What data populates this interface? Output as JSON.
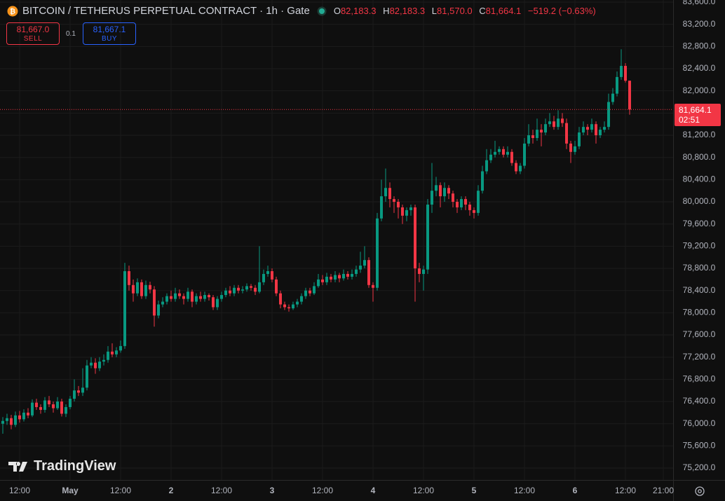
{
  "header": {
    "symbol": "BITCOIN / TETHERUS PERPETUAL CONTRACT · 1h · Gate",
    "o_label": "O",
    "open": "82,183.3",
    "h_label": "H",
    "high": "82,183.3",
    "l_label": "L",
    "low": "81,570.0",
    "c_label": "C",
    "close": "81,664.1",
    "change": "−519.2 (−0.63%)"
  },
  "trade": {
    "sell_price": "81,667.0",
    "sell": "SELL",
    "quantity": "0.1",
    "buy_price": "81,667.1",
    "buy": "BUY"
  },
  "watermark": "TradingView",
  "chart_data": {
    "type": "candlestick",
    "up_color": "#089981",
    "down_color": "#f23645",
    "grid": true,
    "open": [
      76000,
      76050,
      76100,
      75980,
      76150,
      76080,
      76200,
      76150,
      76380,
      76300,
      76250,
      76420,
      76350,
      76280,
      76400,
      76180,
      76300,
      76450,
      76600,
      76560,
      76650,
      77050,
      77100,
      77000,
      77120,
      77150,
      77300,
      77250,
      77320,
      77400,
      78750,
      78500,
      78350,
      78550,
      78300,
      78500,
      78420,
      77950,
      78150,
      78200,
      78300,
      78250,
      78350,
      78300,
      78250,
      78380,
      78200,
      78300,
      78250,
      78320,
      78280,
      78100,
      78250,
      78320,
      78400,
      78350,
      78450,
      78400,
      78420,
      78480,
      78450,
      78380,
      78550,
      78700,
      78750,
      78600,
      78350,
      78150,
      78100,
      78080,
      78150,
      78200,
      78300,
      78400,
      78350,
      78480,
      78600,
      78550,
      78650,
      78600,
      78680,
      78620,
      78700,
      78650,
      78700,
      78780,
      78850,
      78950,
      78500,
      78450,
      79700,
      80100,
      80250,
      80050,
      80000,
      79900,
      79750,
      79850,
      79900,
      78800,
      78700,
      78780,
      79950,
      80200,
      80300,
      80100,
      80250,
      80150,
      80000,
      79900,
      80050,
      79950,
      79850,
      79800,
      80200,
      80550,
      80750,
      80850,
      80900,
      80950,
      80850,
      80900,
      80700,
      80550,
      80650,
      81050,
      81200,
      81150,
      81300,
      81250,
      81400,
      81450,
      81350,
      81500,
      81420,
      81050,
      80900,
      81000,
      81250,
      81350,
      81300,
      81400,
      81200,
      81300,
      81350,
      81800,
      81950,
      82250,
      82450,
      82183.3
    ],
    "high": [
      76120,
      76180,
      76160,
      76220,
      76230,
      76260,
      76280,
      76440,
      76450,
      76350,
      76480,
      76500,
      76400,
      76480,
      76450,
      76350,
      76500,
      76800,
      76680,
      77000,
      77150,
      77200,
      77180,
      77200,
      77250,
      77400,
      77450,
      77380,
      77500,
      78900,
      78850,
      78600,
      78620,
      78600,
      78580,
      78560,
      78480,
      78220,
      78280,
      78350,
      78400,
      78450,
      78420,
      78350,
      78450,
      78420,
      78350,
      78380,
      78380,
      78350,
      78320,
      78300,
      78380,
      78450,
      78480,
      78500,
      78500,
      78480,
      78530,
      78520,
      78500,
      79200,
      78780,
      78850,
      78800,
      78650,
      78400,
      78200,
      78150,
      78200,
      78250,
      78350,
      78450,
      78450,
      78550,
      78700,
      78680,
      78720,
      78700,
      78750,
      78720,
      78780,
      78750,
      78780,
      78850,
      79100,
      79200,
      79000,
      78550,
      79800,
      80400,
      80600,
      80350,
      80100,
      80050,
      79950,
      79900,
      79950,
      79950,
      78900,
      78850,
      80050,
      80700,
      80450,
      80350,
      80350,
      80300,
      80200,
      80050,
      80100,
      80100,
      80000,
      79900,
      80300,
      80650,
      80950,
      80950,
      81100,
      81000,
      81000,
      81000,
      80950,
      80750,
      80700,
      81150,
      81400,
      81300,
      81500,
      81400,
      81500,
      81600,
      81550,
      81650,
      81600,
      81500,
      81100,
      81100,
      81350,
      81450,
      81400,
      81500,
      81450,
      81350,
      81450,
      81950,
      82050,
      82350,
      82750,
      82500,
      82183.3
    ],
    "low": [
      75820,
      75980,
      75900,
      75940,
      76020,
      76040,
      76100,
      76120,
      76250,
      76180,
      76200,
      76300,
      76200,
      76250,
      76130,
      76120,
      76260,
      76400,
      76500,
      76500,
      76600,
      77000,
      76900,
      76950,
      77050,
      77100,
      77200,
      77200,
      77280,
      77350,
      78400,
      78200,
      78300,
      78250,
      78250,
      78350,
      77750,
      77900,
      78100,
      78150,
      78200,
      78200,
      78250,
      78150,
      78200,
      78100,
      78150,
      78200,
      78200,
      78220,
      78050,
      78050,
      78200,
      78280,
      78300,
      78300,
      78350,
      78350,
      78380,
      78400,
      78320,
      78350,
      78500,
      78650,
      78550,
      78300,
      78080,
      78050,
      78020,
      78050,
      78100,
      78150,
      78250,
      78300,
      78320,
      78450,
      78500,
      78500,
      78550,
      78550,
      78550,
      78580,
      78600,
      78600,
      78650,
      78720,
      78800,
      78450,
      78200,
      78400,
      79650,
      80000,
      79900,
      79800,
      79700,
      79600,
      79650,
      79750,
      78200,
      78550,
      78400,
      78700,
      79800,
      80100,
      79900,
      80000,
      80050,
      79900,
      79800,
      79850,
      79850,
      79750,
      79700,
      79750,
      80150,
      80500,
      80700,
      80800,
      80850,
      80800,
      80800,
      80650,
      80500,
      80500,
      80600,
      81000,
      81050,
      81100,
      81000,
      81200,
      81350,
      81300,
      81300,
      81350,
      80950,
      80700,
      80850,
      80950,
      81200,
      81200,
      81250,
      81050,
      81150,
      81250,
      81300,
      81750,
      81900,
      82200,
      82150,
      81570
    ],
    "close": [
      76050,
      76100,
      75980,
      76150,
      76080,
      76200,
      76150,
      76380,
      76300,
      76250,
      76420,
      76350,
      76280,
      76400,
      76180,
      76300,
      76450,
      76600,
      76560,
      76650,
      77050,
      77100,
      77000,
      77120,
      77150,
      77300,
      77250,
      77320,
      77400,
      78750,
      78500,
      78350,
      78550,
      78300,
      78500,
      78420,
      77950,
      78150,
      78200,
      78300,
      78250,
      78350,
      78300,
      78250,
      78380,
      78200,
      78300,
      78250,
      78320,
      78280,
      78100,
      78250,
      78320,
      78400,
      78350,
      78450,
      78400,
      78420,
      78480,
      78450,
      78380,
      78550,
      78700,
      78750,
      78600,
      78350,
      78150,
      78100,
      78080,
      78150,
      78200,
      78300,
      78400,
      78350,
      78480,
      78600,
      78550,
      78650,
      78600,
      78680,
      78620,
      78700,
      78650,
      78700,
      78780,
      78850,
      78950,
      78500,
      78450,
      79700,
      80100,
      80250,
      80050,
      80000,
      79900,
      79750,
      79850,
      79900,
      78800,
      78700,
      78780,
      79950,
      80200,
      80300,
      80100,
      80250,
      80150,
      80000,
      79900,
      80050,
      79950,
      79850,
      79800,
      80200,
      80550,
      80750,
      80850,
      80900,
      80950,
      80850,
      80900,
      80700,
      80550,
      80650,
      81050,
      81200,
      81150,
      81300,
      81250,
      81400,
      81450,
      81350,
      81500,
      81420,
      81050,
      80900,
      81000,
      81250,
      81350,
      81300,
      81400,
      81200,
      81300,
      81350,
      81800,
      81950,
      82250,
      82450,
      82183.3,
      81664.1
    ],
    "xlim": [
      -0.667,
      159.333
    ],
    "xticks": [
      {
        "value": 4,
        "label": "12:00"
      },
      {
        "value": 16,
        "label": "May"
      },
      {
        "value": 28,
        "label": "12:00"
      },
      {
        "value": 40,
        "label": "2"
      },
      {
        "value": 52,
        "label": "12:00"
      },
      {
        "value": 64,
        "label": "3"
      },
      {
        "value": 76,
        "label": "12:00"
      },
      {
        "value": 88,
        "label": "4"
      },
      {
        "value": 100,
        "label": "12:00"
      },
      {
        "value": 112,
        "label": "5"
      },
      {
        "value": 124,
        "label": "12:00"
      },
      {
        "value": 136,
        "label": "6"
      },
      {
        "value": 148,
        "label": "12:00"
      },
      {
        "value": 157,
        "label": "21:00"
      }
    ],
    "ylim": [
      74986,
      83638
    ],
    "yticks": [
      {
        "value": 75200,
        "label": "75,200.0"
      },
      {
        "value": 75600,
        "label": "75,600.0"
      },
      {
        "value": 76000,
        "label": "76,000.0"
      },
      {
        "value": 76400,
        "label": "76,400.0"
      },
      {
        "value": 76800,
        "label": "76,800.0"
      },
      {
        "value": 77200,
        "label": "77,200.0"
      },
      {
        "value": 77600,
        "label": "77,600.0"
      },
      {
        "value": 78000,
        "label": "78,000.0"
      },
      {
        "value": 78400,
        "label": "78,400.0"
      },
      {
        "value": 78800,
        "label": "78,800.0"
      },
      {
        "value": 79200,
        "label": "79,200.0"
      },
      {
        "value": 79600,
        "label": "79,600.0"
      },
      {
        "value": 80000,
        "label": "80,000.0"
      },
      {
        "value": 80400,
        "label": "80,400.0"
      },
      {
        "value": 80800,
        "label": "80,800.0"
      },
      {
        "value": 81200,
        "label": "81,200.0"
      },
      {
        "value": 81600,
        "label": "81,600.0"
      },
      {
        "value": 82000,
        "label": "82,000.0"
      },
      {
        "value": 82400,
        "label": "82,400.0"
      },
      {
        "value": 82800,
        "label": "82,800.0"
      },
      {
        "value": 83200,
        "label": "83,200.0"
      },
      {
        "value": 83600,
        "label": "83,600.0"
      }
    ],
    "last_price": {
      "value": 81664.1,
      "label": "81,664.1"
    },
    "countdown": "02:51"
  }
}
